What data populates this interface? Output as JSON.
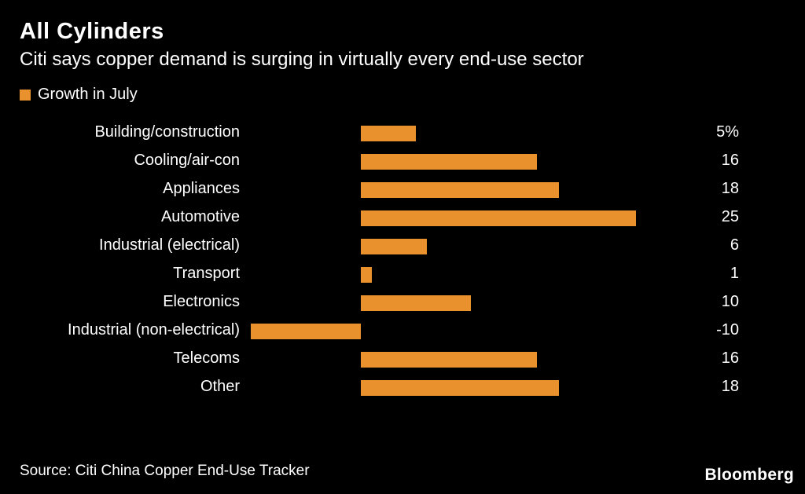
{
  "header": {
    "title": "All Cylinders",
    "subtitle": "Citi says copper demand is surging in virtually every end-use sector"
  },
  "legend": {
    "label": "Growth in July"
  },
  "footer": {
    "source": "Source: Citi China Copper End-Use Tracker",
    "brand": "Bloomberg"
  },
  "colors": {
    "accent": "#E8912D",
    "background": "#000000",
    "text": "#FFFFFF"
  },
  "chart_data": {
    "type": "bar",
    "orientation": "horizontal",
    "title": "All Cylinders",
    "subtitle": "Citi says copper demand is surging in virtually every end-use sector",
    "legend_entries": [
      "Growth in July"
    ],
    "legend_position": "top-left",
    "categories": [
      "Building/construction",
      "Cooling/air-con",
      "Appliances",
      "Automotive",
      "Industrial (electrical)",
      "Transport",
      "Electronics",
      "Industrial (non-electrical)",
      "Telecoms",
      "Other"
    ],
    "values": [
      5,
      16,
      18,
      25,
      6,
      1,
      10,
      -10,
      16,
      18
    ],
    "value_labels": [
      "5%",
      "16",
      "18",
      "25",
      "6",
      "1",
      "10",
      "-10",
      "16",
      "18"
    ],
    "unit": "%",
    "xlim": [
      -10,
      25
    ],
    "grid": false,
    "bar_color": "#E8912D",
    "source": "Citi China Copper End-Use Tracker"
  }
}
